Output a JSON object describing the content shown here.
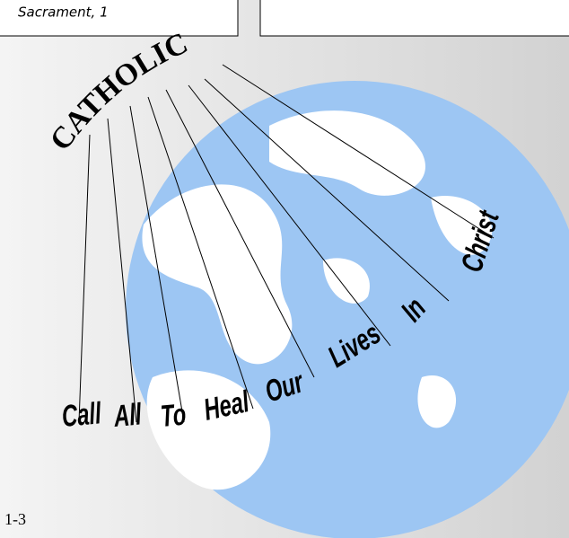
{
  "header_box": {
    "text": "Sacrament, 1"
  },
  "arc_word": "CATHOLIC",
  "phrase": [
    "Call",
    "All",
    "To",
    "Heal",
    "Our",
    "Lives",
    "In",
    "Christ"
  ],
  "footer": "1-3"
}
